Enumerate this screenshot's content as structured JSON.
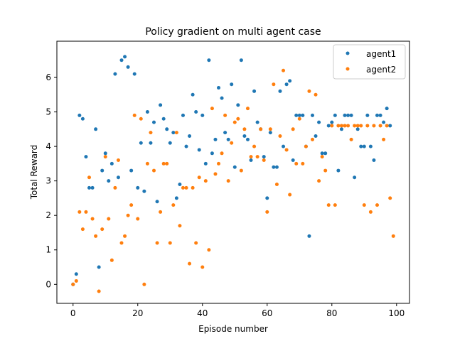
{
  "chart_data": {
    "type": "scatter",
    "title": "Policy gradient on multi agent case",
    "xlabel": "Episode number",
    "ylabel": "Total Reward",
    "xlim": [
      -5,
      104
    ],
    "ylim": [
      -0.55,
      7.05
    ],
    "xticks": [
      0,
      20,
      40,
      60,
      80,
      100
    ],
    "yticks": [
      0,
      1,
      2,
      3,
      4,
      5,
      6
    ],
    "grid": false,
    "legend_position": "top-right",
    "series": [
      {
        "name": "agent1",
        "color": "#1f77b4",
        "x": [
          0,
          1,
          2,
          3,
          4,
          5,
          6,
          7,
          8,
          9,
          10,
          11,
          12,
          13,
          14,
          15,
          16,
          17,
          18,
          19,
          20,
          21,
          22,
          23,
          24,
          25,
          26,
          27,
          28,
          29,
          30,
          31,
          32,
          33,
          34,
          35,
          36,
          37,
          38,
          39,
          40,
          41,
          42,
          43,
          44,
          45,
          46,
          47,
          48,
          49,
          50,
          51,
          52,
          53,
          54,
          55,
          56,
          57,
          58,
          59,
          60,
          61,
          62,
          63,
          64,
          65,
          66,
          67,
          68,
          69,
          70,
          71,
          72,
          73,
          74,
          75,
          76,
          77,
          78,
          79,
          80,
          81,
          82,
          83,
          84,
          85,
          86,
          87,
          88,
          89,
          90,
          91,
          92,
          93,
          94,
          95,
          96,
          97,
          98
        ],
        "y": [
          0.0,
          0.3,
          4.9,
          4.8,
          3.7,
          2.8,
          2.8,
          4.5,
          0.5,
          3.3,
          3.8,
          3.0,
          3.5,
          6.1,
          3.1,
          6.5,
          6.6,
          6.3,
          3.3,
          6.1,
          2.8,
          4.1,
          2.7,
          5.0,
          4.1,
          4.7,
          2.4,
          5.2,
          4.8,
          4.5,
          4.1,
          4.4,
          2.5,
          2.9,
          4.9,
          4.0,
          4.3,
          5.5,
          5.0,
          3.9,
          4.9,
          3.5,
          6.5,
          3.8,
          4.2,
          5.7,
          5.4,
          4.4,
          4.2,
          5.8,
          3.4,
          5.2,
          6.5,
          4.3,
          4.2,
          3.6,
          5.6,
          4.7,
          4.5,
          3.7,
          2.5,
          4.4,
          3.4,
          3.4,
          5.6,
          4.0,
          5.8,
          5.9,
          3.6,
          4.9,
          4.9,
          4.9,
          4.0,
          1.4,
          4.9,
          4.3,
          4.7,
          3.8,
          3.8,
          4.6,
          4.7,
          4.9,
          3.3,
          4.5,
          4.9,
          4.9,
          4.9,
          3.1,
          4.5,
          4.0,
          4.0,
          4.9,
          4.0,
          3.6,
          4.9,
          4.9,
          4.7,
          5.1,
          4.6
        ]
      },
      {
        "name": "agent2",
        "color": "#ff7f0e",
        "x": [
          0,
          1,
          2,
          3,
          4,
          5,
          6,
          7,
          8,
          9,
          10,
          11,
          12,
          13,
          14,
          15,
          16,
          17,
          18,
          19,
          20,
          21,
          22,
          23,
          24,
          25,
          26,
          27,
          28,
          29,
          30,
          31,
          32,
          33,
          34,
          35,
          36,
          37,
          38,
          39,
          40,
          41,
          42,
          43,
          44,
          45,
          46,
          47,
          48,
          49,
          50,
          51,
          52,
          53,
          54,
          55,
          56,
          57,
          58,
          59,
          60,
          61,
          62,
          63,
          64,
          65,
          66,
          67,
          68,
          69,
          70,
          71,
          72,
          73,
          74,
          75,
          76,
          77,
          78,
          79,
          80,
          81,
          82,
          83,
          84,
          85,
          86,
          87,
          88,
          89,
          90,
          91,
          92,
          93,
          94,
          95,
          96,
          97,
          98,
          99
        ],
        "y": [
          0.0,
          0.1,
          2.1,
          1.6,
          2.1,
          3.1,
          1.9,
          1.4,
          -0.2,
          1.6,
          3.7,
          1.9,
          0.7,
          2.8,
          3.6,
          1.2,
          1.4,
          2.0,
          2.3,
          4.9,
          1.9,
          4.8,
          0.0,
          3.5,
          4.4,
          3.3,
          1.2,
          2.1,
          3.5,
          3.5,
          1.2,
          2.3,
          4.4,
          1.7,
          2.8,
          2.8,
          0.6,
          2.8,
          1.2,
          3.1,
          0.5,
          3.0,
          1.0,
          5.1,
          3.2,
          3.5,
          3.8,
          4.9,
          3.0,
          4.1,
          4.7,
          4.8,
          3.3,
          4.5,
          5.1,
          3.7,
          4.0,
          3.7,
          4.5,
          3.6,
          2.1,
          4.5,
          5.8,
          2.9,
          4.3,
          6.2,
          3.9,
          2.6,
          4.5,
          3.5,
          4.8,
          3.5,
          4.0,
          5.6,
          4.2,
          5.5,
          3.0,
          3.7,
          3.3,
          2.3,
          4.6,
          2.3,
          4.6,
          4.6,
          4.6,
          4.6,
          4.2,
          4.6,
          4.6,
          4.6,
          2.3,
          4.6,
          2.1,
          4.6,
          2.3,
          4.6,
          4.2,
          4.6,
          2.5,
          1.4
        ]
      }
    ]
  }
}
